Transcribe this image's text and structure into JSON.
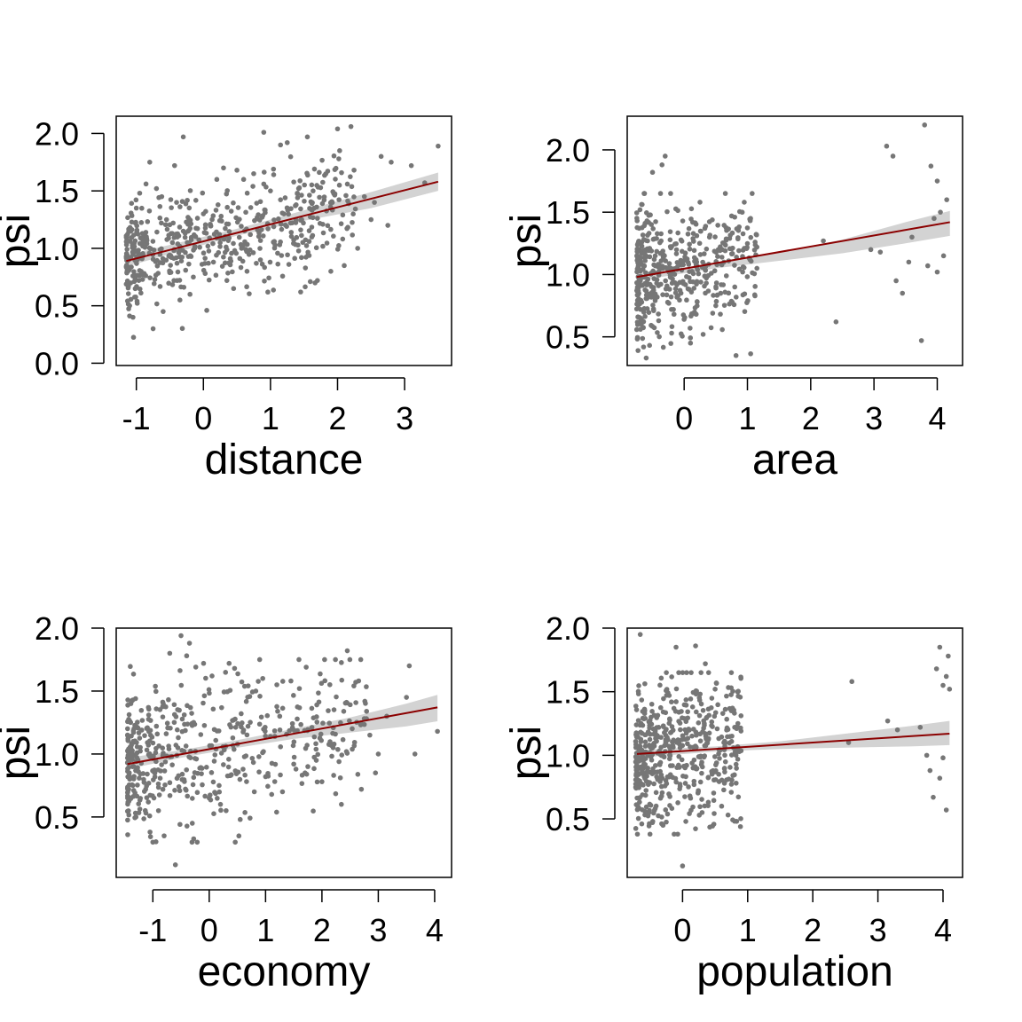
{
  "colors": {
    "points": "#767676",
    "fit_line": "#8b0000",
    "band": "#d3d3d3",
    "axis": "#000000"
  },
  "chart_data": [
    {
      "type": "scatter",
      "xlabel": "distance",
      "ylabel": "psi",
      "xlim": [
        -1.3,
        3.7
      ],
      "ylim": [
        -0.02,
        2.15
      ],
      "xticks": [
        -1,
        0,
        1,
        2,
        3
      ],
      "xtick_labels": [
        "-1",
        "0",
        "1",
        "2",
        "3"
      ],
      "yticks": [
        0.0,
        0.5,
        1.0,
        1.5,
        2.0
      ],
      "ytick_labels": [
        "0.0",
        "0.5",
        "1.0",
        "1.5",
        "2.0"
      ],
      "fit_line": {
        "x": [
          -1.15,
          3.5
        ],
        "y": [
          0.89,
          1.58
        ]
      },
      "confidence_band": {
        "x": [
          -1.15,
          -0.5,
          0.5,
          1.5,
          2.5,
          3.5
        ],
        "lower": [
          0.84,
          0.95,
          1.11,
          1.24,
          1.35,
          1.5
        ],
        "upper": [
          0.94,
          1.03,
          1.17,
          1.33,
          1.49,
          1.66
        ]
      },
      "points": {
        "x": [
          -0.3,
          0.9,
          1.55,
          2.0,
          2.2,
          1.15,
          1.25,
          0.3,
          0.5,
          0.2,
          0.6,
          0.75,
          0.9,
          1.0,
          1.4,
          2.65,
          2.8,
          3.1,
          3.5,
          3.3,
          2.4,
          2.55,
          1.8,
          1.65,
          1.2,
          -0.8,
          -0.7,
          -0.95,
          -1.0,
          -0.55,
          -0.3,
          0.0,
          -0.15,
          0.35,
          0.15,
          -1.1,
          -1.05,
          -0.6,
          -0.75,
          -0.2,
          -0.35,
          0.05,
          0.45,
          0.65,
          0.85,
          1.05,
          1.45,
          1.7,
          1.9,
          2.1,
          2.3,
          2.5,
          2.75,
          -0.4,
          -0.85,
          0.25,
          0.7,
          1.3
        ],
        "y": [
          1.97,
          2.01,
          1.97,
          2.04,
          2.06,
          1.9,
          1.92,
          1.7,
          1.68,
          1.6,
          1.6,
          1.65,
          1.56,
          1.5,
          1.48,
          1.8,
          1.75,
          1.72,
          1.89,
          1.57,
          1.45,
          1.4,
          1.42,
          1.35,
          1.3,
          1.75,
          1.52,
          1.48,
          1.35,
          1.25,
          1.15,
          1.3,
          0.75,
          0.72,
          0.88,
          0.5,
          0.4,
          0.45,
          0.3,
          0.6,
          0.55,
          0.46,
          0.65,
          0.8,
          0.9,
          1.05,
          0.62,
          0.72,
          0.8,
          0.85,
          1.0,
          1.25,
          1.2,
          1.4,
          1.1,
          1.05,
          1.12,
          1.22
        ]
      }
    },
    {
      "type": "scatter",
      "xlabel": "area",
      "ylabel": "psi",
      "xlim": [
        -0.9,
        4.4
      ],
      "ylim": [
        0.27,
        2.27
      ],
      "xticks": [
        0,
        1,
        2,
        3,
        4
      ],
      "xtick_labels": [
        "0",
        "1",
        "2",
        "3",
        "4"
      ],
      "yticks": [
        0.5,
        1.0,
        1.5,
        2.0
      ],
      "ytick_labels": [
        "0.5",
        "1.0",
        "1.5",
        "2.0"
      ],
      "fit_line": {
        "x": [
          -0.75,
          4.2
        ],
        "y": [
          0.98,
          1.42
        ]
      },
      "confidence_band": {
        "x": [
          -0.75,
          0.5,
          1.5,
          2.5,
          3.5,
          4.2
        ],
        "lower": [
          0.95,
          1.05,
          1.11,
          1.17,
          1.25,
          1.31
        ],
        "upper": [
          1.01,
          1.09,
          1.18,
          1.28,
          1.42,
          1.51
        ]
      },
      "points": {
        "x": [
          -0.3,
          -0.35,
          -0.5,
          0.25,
          0.75,
          0.95,
          1.05,
          1.15,
          0.6,
          0.4,
          2.2,
          2.4,
          2.95,
          3.2,
          3.3,
          3.35,
          3.45,
          3.55,
          3.8,
          3.75,
          3.9,
          4.0,
          3.95,
          4.05,
          4.1,
          4.15,
          3.85,
          4.0,
          3.6,
          3.1,
          0.1,
          0.3,
          -0.2,
          -0.05,
          0.5,
          0.8,
          -0.6
        ],
        "y": [
          1.95,
          1.88,
          1.82,
          1.58,
          1.47,
          1.58,
          1.45,
          1.22,
          1.2,
          1.3,
          1.27,
          0.62,
          1.2,
          2.03,
          1.95,
          0.95,
          0.85,
          1.1,
          2.2,
          0.47,
          1.87,
          1.75,
          1.45,
          1.5,
          1.15,
          1.6,
          1.07,
          1.02,
          1.3,
          1.18,
          0.45,
          0.52,
          0.72,
          0.85,
          0.75,
          0.9,
          0.33
        ]
      }
    },
    {
      "type": "scatter",
      "xlabel": "economy",
      "ylabel": "psi",
      "xlim": [
        -1.65,
        4.3
      ],
      "ylim": [
        0.02,
        2.0
      ],
      "xticks": [
        -1,
        0,
        1,
        2,
        3,
        4
      ],
      "xtick_labels": [
        "-1",
        "0",
        "1",
        "2",
        "3",
        "4"
      ],
      "yticks": [
        0.5,
        1.0,
        1.5,
        2.0
      ],
      "ytick_labels": [
        "0.5",
        "1.0",
        "1.5",
        "2.0"
      ],
      "fit_line": {
        "x": [
          -1.45,
          4.05
        ],
        "y": [
          0.92,
          1.37
        ]
      },
      "confidence_band": {
        "x": [
          -1.45,
          -0.5,
          0.5,
          1.5,
          2.5,
          3.5,
          4.05
        ],
        "lower": [
          0.88,
          0.97,
          1.05,
          1.12,
          1.17,
          1.22,
          1.26
        ],
        "upper": [
          0.97,
          1.03,
          1.11,
          1.2,
          1.29,
          1.4,
          1.47
        ]
      },
      "points": {
        "x": [
          -0.5,
          -0.35,
          -0.7,
          -0.4,
          -0.1,
          0.05,
          0.45,
          0.95,
          1.2,
          1.45,
          1.6,
          2.45,
          2.6,
          3.55,
          3.5,
          3.15,
          2.85,
          3.0,
          4.05,
          3.65,
          2.2,
          1.9,
          1.7,
          1.3,
          0.3,
          0.2,
          -0.3,
          -0.8,
          -1.0,
          -1.3,
          -1.05,
          -0.9,
          0.0,
          0.8,
          1.0,
          1.5,
          2.0,
          2.7,
          2.95,
          -1.35,
          -0.6,
          0.55,
          1.75
        ],
        "y": [
          1.94,
          1.88,
          1.8,
          1.78,
          1.72,
          1.62,
          1.68,
          1.6,
          1.55,
          1.58,
          1.52,
          1.82,
          1.57,
          1.7,
          1.45,
          1.3,
          1.15,
          1.0,
          1.18,
          1.0,
          1.05,
          0.95,
          0.85,
          0.7,
          0.55,
          0.6,
          0.45,
          0.35,
          0.3,
          0.5,
          0.38,
          0.55,
          0.65,
          0.7,
          0.82,
          0.92,
          0.78,
          0.72,
          0.85,
          1.1,
          0.12,
          0.48,
          0.9
        ]
      }
    },
    {
      "type": "scatter",
      "xlabel": "population",
      "ylabel": "psi",
      "xlim": [
        -0.85,
        4.3
      ],
      "ylim": [
        0.04,
        2.0
      ],
      "xticks": [
        0,
        1,
        2,
        3,
        4
      ],
      "xtick_labels": [
        "0",
        "1",
        "2",
        "3",
        "4"
      ],
      "yticks": [
        0.5,
        1.0,
        1.5,
        2.0
      ],
      "ytick_labels": [
        "0.5",
        "1.0",
        "1.5",
        "2.0"
      ],
      "fit_line": {
        "x": [
          -0.7,
          4.1
        ],
        "y": [
          1.01,
          1.17
        ]
      },
      "confidence_band": {
        "x": [
          -0.7,
          0.5,
          1.5,
          2.5,
          3.5,
          4.1
        ],
        "lower": [
          0.98,
          1.03,
          1.05,
          1.06,
          1.07,
          1.08
        ],
        "upper": [
          1.04,
          1.07,
          1.11,
          1.17,
          1.23,
          1.27
        ]
      },
      "points": {
        "x": [
          -0.65,
          -0.1,
          0.2,
          0.35,
          0.4,
          0.5,
          0.75,
          0.85,
          0.8,
          2.6,
          3.15,
          3.3,
          3.65,
          3.75,
          3.8,
          3.9,
          3.95,
          4.0,
          4.05,
          4.08,
          4.1,
          4.0,
          3.85,
          4.05,
          3.95,
          2.55,
          0.0,
          -0.5,
          0.3,
          0.6,
          -0.3,
          0.05
        ],
        "y": [
          1.95,
          1.85,
          1.86,
          1.72,
          1.65,
          1.52,
          1.35,
          1.25,
          1.22,
          1.58,
          1.27,
          1.2,
          1.22,
          1.0,
          0.88,
          1.68,
          1.85,
          1.55,
          1.62,
          1.78,
          1.52,
          0.98,
          0.67,
          0.57,
          0.82,
          1.1,
          0.13,
          0.38,
          0.55,
          0.6,
          0.45,
          0.48
        ]
      }
    }
  ]
}
